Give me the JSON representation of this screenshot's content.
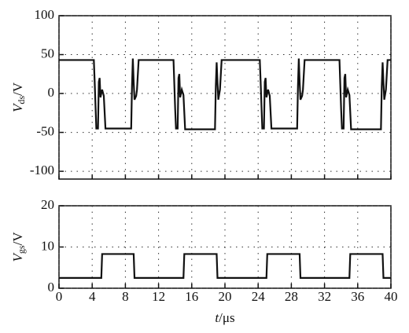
{
  "chart_data": [
    {
      "type": "line",
      "ylabel": {
        "symbol": "V",
        "subscript": "ds",
        "unit": "/V"
      },
      "xlim": [
        0,
        40
      ],
      "ylim": [
        -110,
        100
      ],
      "yticks": [
        -100,
        -50,
        0,
        50,
        100
      ],
      "grid": true,
      "series": [
        {
          "color": "#111111",
          "x": [
            0,
            4.2,
            4.3,
            4.5,
            4.7,
            4.8,
            4.9,
            5.0,
            5.2,
            5.4,
            5.6,
            8.7,
            8.8,
            8.9,
            9.0,
            9.1,
            9.3,
            9.4,
            9.6,
            13.8,
            14.0,
            14.1,
            14.3,
            14.4,
            14.5,
            14.6,
            14.8,
            15.0,
            15.2,
            18.8,
            18.9,
            19.0,
            19.1,
            19.2,
            19.4,
            19.6,
            24.2,
            24.3,
            24.5,
            24.7,
            24.8,
            24.9,
            25.0,
            25.2,
            25.4,
            25.6,
            28.7,
            28.8,
            28.9,
            29.0,
            29.1,
            29.3,
            29.4,
            29.6,
            33.8,
            34.0,
            34.1,
            34.3,
            34.4,
            34.5,
            34.6,
            34.8,
            35.0,
            35.2,
            38.8,
            38.9,
            39.0,
            39.1,
            39.2,
            39.4,
            39.6,
            40
          ],
          "values": [
            43,
            43,
            15,
            -45,
            -45,
            15,
            20,
            -5,
            5,
            -3,
            -45,
            -45,
            10,
            45,
            15,
            -8,
            -3,
            5,
            43,
            43,
            -20,
            -45,
            -45,
            20,
            25,
            -5,
            5,
            -2,
            -46,
            -46,
            10,
            40,
            15,
            -8,
            5,
            43,
            43,
            15,
            -45,
            -45,
            15,
            20,
            -5,
            5,
            -3,
            -45,
            -45,
            10,
            45,
            15,
            -8,
            -3,
            5,
            43,
            43,
            -20,
            -45,
            -45,
            20,
            25,
            -5,
            5,
            -2,
            -46,
            -46,
            10,
            40,
            15,
            -8,
            5,
            43,
            43
          ]
        }
      ]
    },
    {
      "type": "line",
      "ylabel": {
        "symbol": "V",
        "subscript": "gs",
        "unit": "/V"
      },
      "xlabel": {
        "symbol": "t",
        "unit": "/μs"
      },
      "xlim": [
        0,
        40
      ],
      "xticks": [
        0,
        4,
        8,
        12,
        16,
        20,
        24,
        28,
        32,
        36,
        40
      ],
      "ylim": [
        0,
        20
      ],
      "yticks": [
        0,
        10,
        20
      ],
      "grid": true,
      "series": [
        {
          "color": "#111111",
          "x": [
            0,
            5.1,
            5.2,
            9.0,
            9.1,
            15.0,
            15.1,
            19.0,
            19.1,
            25.0,
            25.1,
            29.0,
            29.1,
            35.0,
            35.1,
            39.0,
            39.1,
            40
          ],
          "values": [
            2.5,
            2.5,
            8.3,
            8.3,
            2.5,
            2.5,
            8.3,
            8.3,
            2.5,
            2.5,
            8.3,
            8.3,
            2.5,
            2.5,
            8.3,
            8.3,
            2.5,
            2.5
          ]
        }
      ]
    }
  ]
}
